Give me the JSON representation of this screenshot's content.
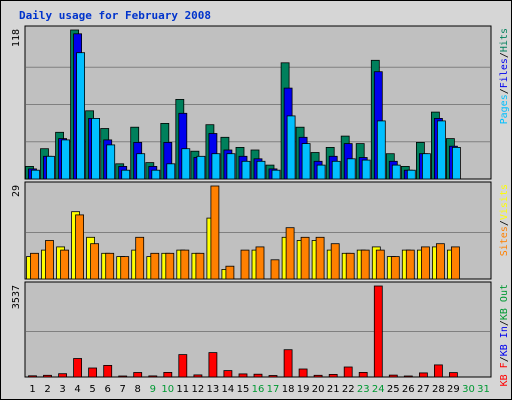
{
  "chart_data": {
    "type": "bar",
    "title": "Daily usage for February 2008",
    "categories": [
      "1",
      "2",
      "3",
      "4",
      "5",
      "6",
      "7",
      "8",
      "9",
      "10",
      "11",
      "12",
      "13",
      "14",
      "15",
      "16",
      "17",
      "18",
      "19",
      "20",
      "21",
      "22",
      "23",
      "24",
      "25",
      "26",
      "27",
      "28",
      "29",
      "30",
      "31"
    ],
    "weekend_days": [
      "9",
      "10",
      "16",
      "17",
      "23",
      "24",
      "30",
      "31"
    ],
    "day_colors": {
      "weekday": "#000000",
      "weekend": "#009933"
    },
    "panels": [
      {
        "name": "pages-files-hits",
        "max_label": "118",
        "ylim": [
          0,
          118
        ],
        "series": [
          {
            "name": "Hits",
            "color": "#00805c",
            "values": [
              10,
              24,
              37,
              118,
              54,
              40,
              12,
              41,
              13,
              44,
              63,
              22,
              43,
              33,
              25,
              23,
              11,
              92,
              41,
              21,
              25,
              34,
              28,
              94,
              20,
              10,
              29,
              53,
              32,
              0,
              0
            ]
          },
          {
            "name": "Files",
            "color": "#0000ee",
            "values": [
              8,
              18,
              32,
              115,
              48,
              31,
              10,
              29,
              10,
              29,
              52,
              17,
              36,
              23,
              18,
              16,
              8,
              72,
              33,
              14,
              18,
              28,
              17,
              85,
              14,
              7,
              20,
              48,
              26,
              0,
              0
            ]
          },
          {
            "name": "Pages",
            "color": "#00bfff",
            "values": [
              7,
              18,
              31,
              100,
              48,
              27,
              7,
              20,
              7,
              12,
              24,
              18,
              20,
              20,
              14,
              14,
              7,
              50,
              28,
              11,
              14,
              16,
              15,
              46,
              11,
              7,
              20,
              46,
              25,
              0,
              0
            ]
          }
        ],
        "legend": [
          {
            "text": "Pages",
            "color": "#00bfff"
          },
          {
            "text": "/",
            "color": "#000000"
          },
          {
            "text": "Files",
            "color": "#0000ee"
          },
          {
            "text": "/",
            "color": "#000000"
          },
          {
            "text": "Hits",
            "color": "#00805c"
          }
        ]
      },
      {
        "name": "visits-sites",
        "max_label": "29",
        "ylim": [
          0,
          29
        ],
        "series": [
          {
            "name": "Visits",
            "color": "#ffff00",
            "values": [
              7,
              9,
              10,
              21,
              13,
              8,
              7,
              9,
              7,
              8,
              9,
              8,
              19,
              3,
              0,
              9,
              0,
              13,
              12,
              12,
              9,
              8,
              9,
              10,
              7,
              9,
              9,
              10,
              9,
              0,
              0
            ]
          },
          {
            "name": "Sites",
            "color": "#ff8000",
            "values": [
              8,
              12,
              9,
              20,
              11,
              8,
              7,
              13,
              8,
              8,
              9,
              8,
              29,
              4,
              9,
              10,
              6,
              16,
              13,
              13,
              11,
              8,
              9,
              9,
              7,
              9,
              10,
              11,
              10,
              0,
              0
            ]
          }
        ],
        "legend": [
          {
            "text": "Sites",
            "color": "#ff8000"
          },
          {
            "text": "/",
            "color": "#000000"
          },
          {
            "text": "Visits",
            "color": "#ffff00"
          }
        ]
      },
      {
        "name": "kbytes",
        "max_label": "3537",
        "ylim": [
          0,
          3537
        ],
        "series": [
          {
            "name": "KBytes",
            "color": "#ff0000",
            "values": [
              45,
              65,
              130,
              720,
              350,
              450,
              40,
              175,
              42,
              180,
              870,
              80,
              950,
              250,
              120,
              110,
              60,
              1060,
              310,
              65,
              100,
              390,
              180,
              3537,
              75,
              40,
              160,
              470,
              170,
              0,
              0
            ]
          }
        ],
        "legend": [
          {
            "text": "KB F",
            "color": "#ff0000"
          },
          {
            "text": "/",
            "color": "#000000"
          },
          {
            "text": "KB In",
            "color": "#0000ee"
          },
          {
            "text": "/",
            "color": "#000000"
          },
          {
            "text": "KB Out",
            "color": "#009933"
          }
        ]
      }
    ]
  }
}
